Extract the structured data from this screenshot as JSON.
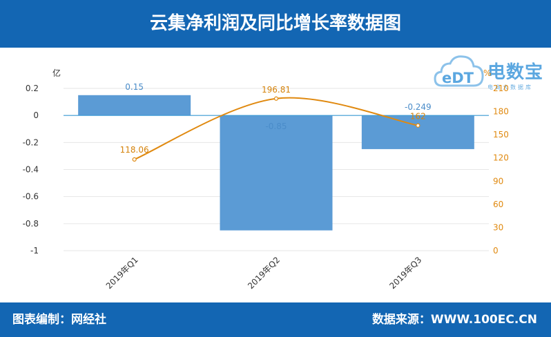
{
  "header": {
    "title": "云集净利润及同比增长率数据图"
  },
  "footer": {
    "left": "图表编制：网经社",
    "right": "数据来源：WWW.100EC.CN"
  },
  "logo": {
    "name": "电数宝",
    "sub": "电商大数据库",
    "mark": "eDT"
  },
  "colors": {
    "header_bg": "#1366b3",
    "bar": "#5b9bd5",
    "line": "#e0890f",
    "zero_line": "#3a9bd6"
  },
  "chart_data": {
    "type": "bar",
    "categories": [
      "2019年Q1",
      "2019年Q2",
      "2019年Q3"
    ],
    "series": [
      {
        "name": "",
        "type": "bar",
        "axis": "left",
        "values": [
          0.15,
          -0.85,
          -0.249
        ],
        "labels": [
          "0.15",
          "-0.85",
          "-0.249"
        ]
      },
      {
        "name": "",
        "type": "line",
        "axis": "right",
        "values": [
          118.06,
          196.81,
          162
        ],
        "labels": [
          "118.06",
          "196.81",
          "162"
        ]
      }
    ],
    "yleft": {
      "unit": "亿",
      "ylim": [
        -1,
        0.2
      ],
      "ticks": [
        "0.2",
        "0",
        "-0.2",
        "-0.4",
        "-0.6",
        "-0.8",
        "-1"
      ]
    },
    "yright": {
      "unit": "%",
      "ylim": [
        0,
        210
      ],
      "ticks": [
        "210",
        "180",
        "150",
        "120",
        "90",
        "60",
        "30",
        "0"
      ]
    },
    "grid": true
  }
}
